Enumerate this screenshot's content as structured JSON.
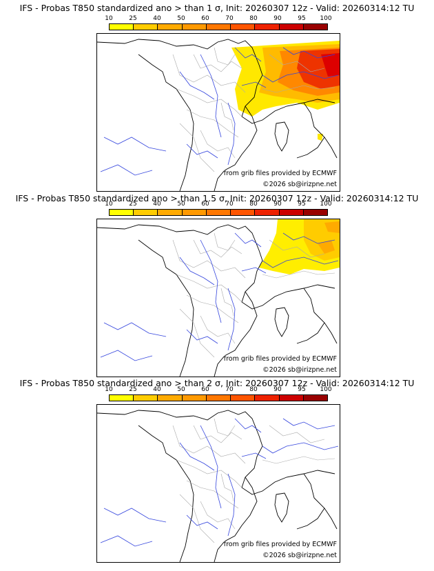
{
  "scale": {
    "labels": [
      "10",
      "25",
      "40",
      "50",
      "60",
      "70",
      "80",
      "90",
      "95",
      "100"
    ],
    "colors": [
      "#ffff00",
      "#ffcc00",
      "#ffaa00",
      "#ff9900",
      "#ff7700",
      "#ff5500",
      "#ee2200",
      "#cc0000",
      "#990000"
    ]
  },
  "panels": [
    {
      "title": "IFS - Probas T850  standardized ano > than 1 σ, Init: 20260307 12z - Valid: 20260314:12 TU",
      "credit_source": "from grib files provided by ECMWF",
      "credit_copyright": "©2026 sb@irizpne.net"
    },
    {
      "title": "IFS - Probas T850  standardized ano > than 1.5 σ, Init: 20260307 12z - Valid: 20260314:12 TU",
      "credit_source": "from grib files provided by ECMWF",
      "credit_copyright": "©2026 sb@irizpne.net"
    },
    {
      "title": "IFS - Probas T850  standardized ano > than 2 σ, Init: 20260307 12z - Valid: 20260314:12 TU",
      "credit_source": "from grib files provided by ECMWF",
      "credit_copyright": "©2026 sb@irizpne.net"
    }
  ]
}
